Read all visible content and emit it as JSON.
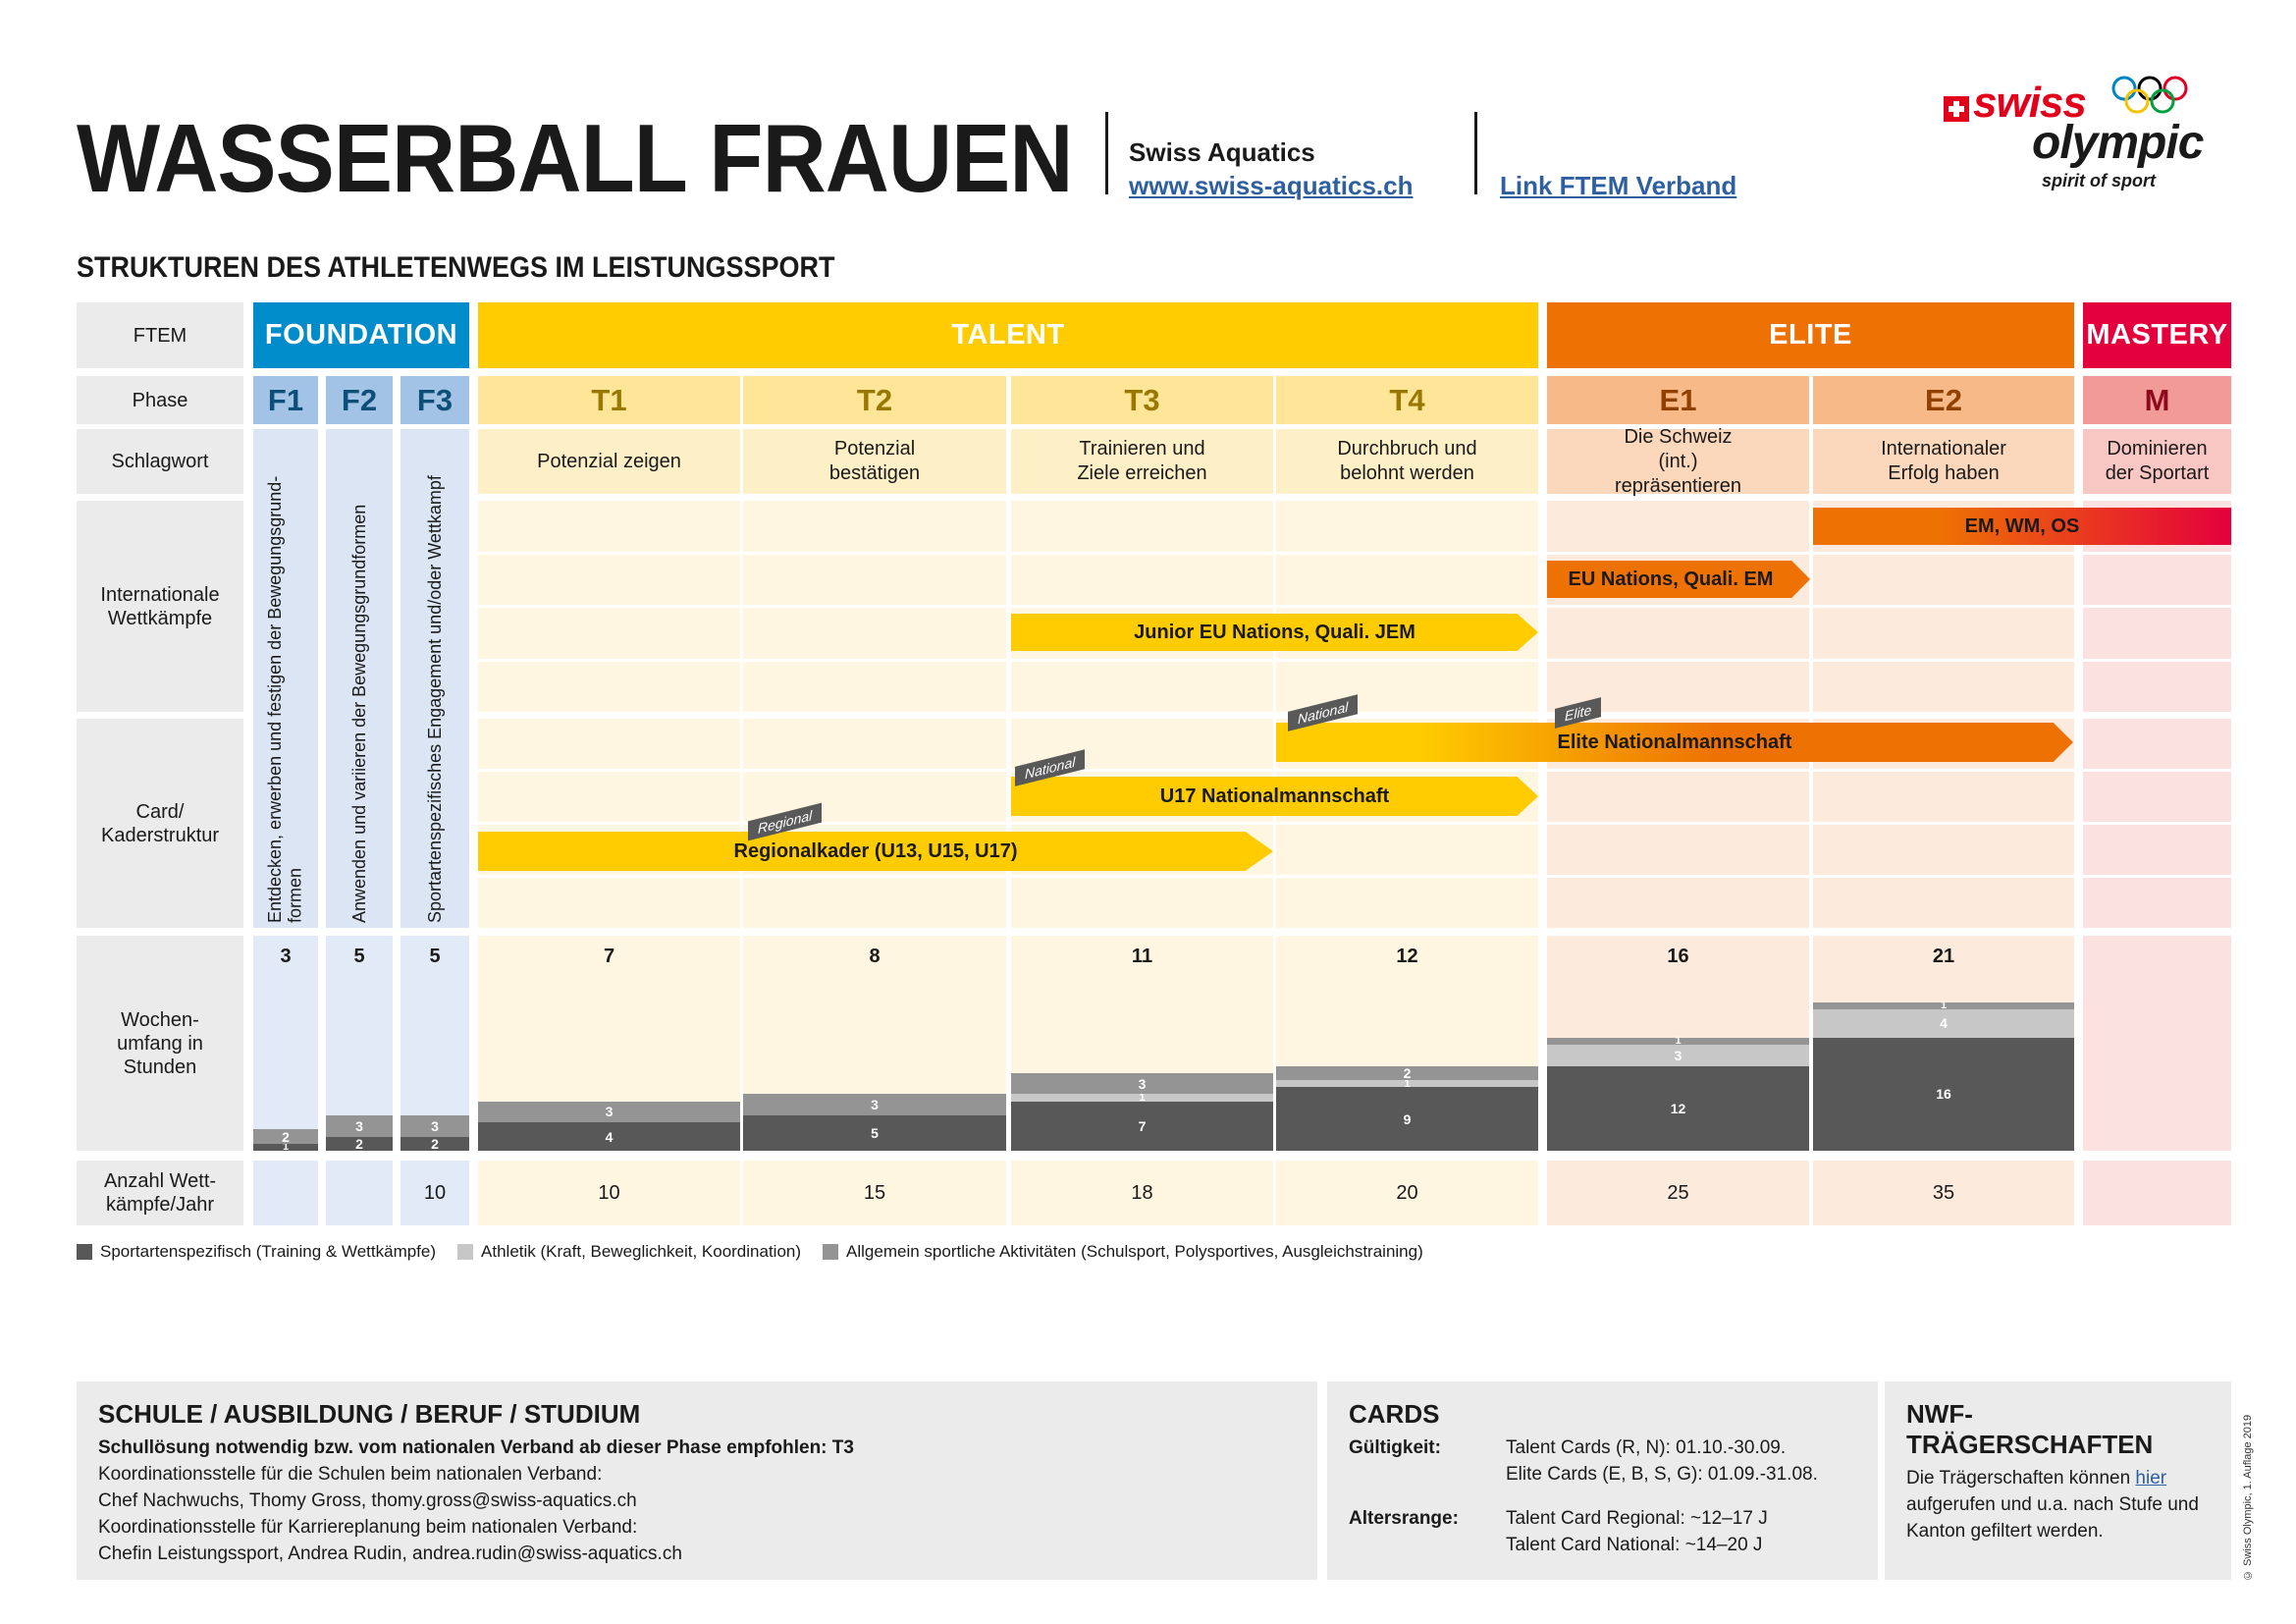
{
  "header": {
    "title": "WASSERBALL FRAUEN",
    "org_name": "Swiss Aquatics",
    "org_link": "www.swiss-aquatics.ch",
    "ftem_link": "Link FTEM Verband",
    "subtitle": "STRUKTUREN DES ATHLETENWEGS IM LEISTUNGSSPORT",
    "logo": {
      "swiss": "swiss",
      "olympic": "olympic",
      "tagline": "spirit of sport",
      "icons": [
        "swiss-cross-icon",
        "olympic-rings-icon"
      ]
    }
  },
  "row_labels": {
    "ftem": "FTEM",
    "phase": "Phase",
    "schlagwort": "Schlagwort",
    "intl": "Internationale Wettkämpfe",
    "card": "Card/ Kaderstruktur",
    "wochen": "Wochen- umfang in Stunden",
    "anzahl": "Anzahl Wett- kämpfe/Jahr"
  },
  "ftem_groups": [
    {
      "label": "FOUNDATION",
      "color": "#008bca"
    },
    {
      "label": "TALENT",
      "color": "#fecc00"
    },
    {
      "label": "ELITE",
      "color": "#ee7203"
    },
    {
      "label": "MASTERY",
      "color": "#e4003c"
    }
  ],
  "phases": [
    {
      "code": "F1",
      "keyword": "Entdecken, erwerben und festigen der Bewegungsgrund- formen",
      "total_hours": 3,
      "sport_specific": 1,
      "athletics": 0,
      "general": 2,
      "competitions": ""
    },
    {
      "code": "F2",
      "keyword": "Anwenden und variieren der Bewegungsgrundformen",
      "total_hours": 5,
      "sport_specific": 2,
      "athletics": 0,
      "general": 3,
      "competitions": ""
    },
    {
      "code": "F3",
      "keyword": "Sportartenspezifisches Engagement und/oder Wettkampf",
      "total_hours": 5,
      "sport_specific": 2,
      "athletics": 0,
      "general": 3,
      "competitions": "10"
    },
    {
      "code": "T1",
      "keyword": "Potenzial zeigen",
      "total_hours": 7,
      "sport_specific": 4,
      "athletics": 0,
      "general": 3,
      "competitions": "10"
    },
    {
      "code": "T2",
      "keyword": "Potenzial bestätigen",
      "total_hours": 8,
      "sport_specific": 5,
      "athletics": 0,
      "general": 3,
      "competitions": "15"
    },
    {
      "code": "T3",
      "keyword": "Trainieren und Ziele erreichen",
      "total_hours": 11,
      "sport_specific": 7,
      "athletics": 1,
      "general": 3,
      "competitions": "18"
    },
    {
      "code": "T4",
      "keyword": "Durchbruch und belohnt werden",
      "total_hours": 12,
      "sport_specific": 9,
      "athletics": 1,
      "general": 2,
      "competitions": "20"
    },
    {
      "code": "E1",
      "keyword": "Die Schweiz (int.) repräsentieren",
      "total_hours": 16,
      "sport_specific": 12,
      "athletics": 3,
      "general": 1,
      "competitions": "25"
    },
    {
      "code": "E2",
      "keyword": "Internationaler Erfolg haben",
      "total_hours": 21,
      "sport_specific": 16,
      "athletics": 4,
      "general": 1,
      "competitions": "35"
    },
    {
      "code": "M",
      "keyword": "Dominieren der Sportart",
      "total_hours": null,
      "sport_specific": 0,
      "athletics": 0,
      "general": 0,
      "competitions": ""
    }
  ],
  "intl_competitions": [
    {
      "label": "EM, WM, OS",
      "from_phase": "E2",
      "to_phase": "M"
    },
    {
      "label": "EU Nations, Quali. EM",
      "from_phase": "E1",
      "to_phase": "E1"
    },
    {
      "label": "Junior EU Nations, Quali. JEM",
      "from_phase": "T3",
      "to_phase": "T4"
    }
  ],
  "card_structure": [
    {
      "label": "Elite Nationalmannschaft",
      "from_phase": "T4",
      "to_phase": "E2",
      "tags": [
        "National",
        "Elite"
      ]
    },
    {
      "label": "U17 Nationalmannschaft",
      "from_phase": "T3",
      "to_phase": "T4",
      "tags": [
        "National"
      ]
    },
    {
      "label": "Regionalkader (U13, U15, U17)",
      "from_phase": "T1",
      "to_phase": "T2",
      "tags": [
        "Regional"
      ]
    }
  ],
  "legend": [
    {
      "label": "Sportartenspezifisch (Training & Wettkämpfe)",
      "color": "#575857"
    },
    {
      "label": "Athletik (Kraft, Beweglichkeit, Koordination)",
      "color": "#c6c7c6"
    },
    {
      "label": "Allgemein sportliche Aktivitäten (Schulsport, Polysportives, Ausgleichstraining)",
      "color": "#939493"
    }
  ],
  "chart_data": {
    "type": "bar",
    "title": "Wochenumfang in Stunden",
    "categories": [
      "F1",
      "F2",
      "F3",
      "T1",
      "T2",
      "T3",
      "T4",
      "E1",
      "E2",
      "M"
    ],
    "series": [
      {
        "name": "Sportartenspezifisch (Training & Wettkämpfe)",
        "values": [
          1,
          2,
          2,
          4,
          5,
          7,
          9,
          12,
          16,
          0
        ]
      },
      {
        "name": "Athletik (Kraft, Beweglichkeit, Koordination)",
        "values": [
          0,
          0,
          0,
          0,
          0,
          1,
          1,
          3,
          4,
          0
        ]
      },
      {
        "name": "Allgemein sportliche Aktivitäten (Schulsport, Polysportives, Ausgleichstraining)",
        "values": [
          2,
          3,
          3,
          3,
          3,
          3,
          2,
          1,
          1,
          0
        ]
      }
    ],
    "totals": [
      3,
      5,
      5,
      7,
      8,
      11,
      12,
      16,
      21,
      null
    ],
    "stacked": true,
    "xlabel": "",
    "ylabel": "Stunden",
    "ylim": [
      0,
      40
    ],
    "legend_position": "bottom"
  },
  "school": {
    "heading": "SCHULE / AUSBILDUNG / BERUF / STUDIUM",
    "bold_line": "Schullösung notwendig bzw. vom nationalen Verband ab dieser Phase empfohlen: T3",
    "lines": [
      "Koordinationsstelle für die Schulen beim nationalen Verband:",
      "Chef Nachwuchs, Thomy Gross, thomy.gross@swiss-aquatics.ch",
      "Koordinationsstelle für Karriereplanung beim nationalen Verband:",
      "Chefin Leistungssport, Andrea Rudin, andrea.rudin@swiss-aquatics.ch"
    ]
  },
  "cards": {
    "heading": "CARDS",
    "validity_label": "Gültigkeit:",
    "validity_lines": [
      "Talent Cards (R, N): 01.10.-30.09.",
      "Elite Cards (E, B, S, G): 01.09.-31.08."
    ],
    "age_label": "Altersrange:",
    "age_lines": [
      "Talent Card Regional: ~12–17 J",
      "Talent Card National: ~14–20 J"
    ]
  },
  "nwf": {
    "heading": "NWF-TRÄGERSCHAFTEN",
    "text_before": "Die Trägerschaften können ",
    "link": "hier",
    "text_after": " aufgerufen und u.a. nach Stufe und Kanton gefiltert werden."
  },
  "copyright": "© Swiss Olympic, 1. Auflage 2019"
}
